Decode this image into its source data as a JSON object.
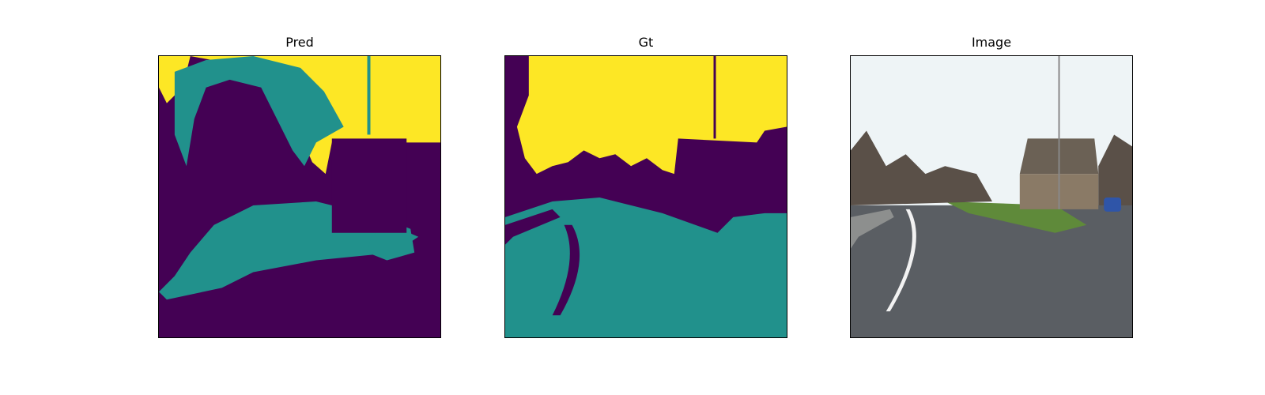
{
  "panels": [
    {
      "title": "Pred"
    },
    {
      "title": "Gt"
    },
    {
      "title": "Image"
    }
  ],
  "colors": {
    "class_background": "#440154",
    "class_road": "#21918c",
    "class_sky": "#fde725",
    "sky_photo": "#eef4f6",
    "road_photo": "#5a5e63",
    "grass": "#5f8a3a",
    "building": "#6b6155",
    "tree": "#5a5048",
    "car": "#2f55a8",
    "lane_marking": "#f2f2f2"
  }
}
